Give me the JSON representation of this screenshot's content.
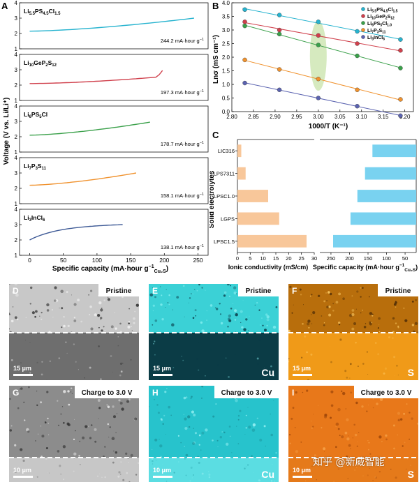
{
  "panelA": {
    "letter": "A",
    "ylabel": "Voltage (V vs. Li/Li⁺)",
    "xlabel": "Specific capacity (mA·hour g",
    "xlabel_sup": "−1",
    "xlabel_sub": "Cu₂S",
    "xlabel_close": ")",
    "xticks": [
      "0",
      "50",
      "100",
      "150",
      "200",
      "250"
    ],
    "yticks": [
      "1",
      "2",
      "3",
      "4"
    ],
    "curves": [
      {
        "base": "Li",
        "s1": "5.5",
        "m1": "PS",
        "s2": "4.5",
        "m2": "Cl",
        "s3": "1.5",
        "capacity_label": "244.2 mA·hour g",
        "capacity_sup": "−1",
        "color": "#26b3cf",
        "v_start": 2.15,
        "v_end": 3.0,
        "capacity": 244.2,
        "hook": false
      },
      {
        "base": "Li",
        "s1": "10",
        "m1": "GeP",
        "s2": "2",
        "m2": "S",
        "s3": "12",
        "capacity_label": "197.3 mA·hour g",
        "capacity_sup": "−1",
        "color": "#d0404c",
        "v_start": 2.1,
        "v_end": 2.55,
        "capacity": 197.3,
        "hook": true
      },
      {
        "base": "Li",
        "s1": "6",
        "m1": "PS",
        "s2": "5",
        "m2": "Cl",
        "s3": "",
        "capacity_label": "178.7 mA·hour g",
        "capacity_sup": "−1",
        "color": "#3aa04a",
        "v_start": 2.1,
        "v_end": 2.95,
        "capacity": 178.7,
        "hook": false
      },
      {
        "base": "Li",
        "s1": "7",
        "m1": "P",
        "s2": "3",
        "m2": "S",
        "s3": "11",
        "capacity_label": "158.1 mA·hour g",
        "capacity_sup": "−1",
        "color": "#f0922e",
        "v_start": 2.2,
        "v_end": 3.0,
        "capacity": 158.1,
        "hook": false
      },
      {
        "base": "Li",
        "s1": "3",
        "m1": "InCl",
        "s2": "6",
        "m2": "",
        "s3": "",
        "capacity_label": "138.1 mA·hour g",
        "capacity_sup": "−1",
        "color": "#3e5a96",
        "v_start": 2.0,
        "v_end": 3.0,
        "capacity": 138.1,
        "hook": false
      }
    ]
  },
  "panelB": {
    "letter": "B",
    "ylabel": "Lnσ (mS cm⁻¹)",
    "xlabel": "1000/T (K⁻¹)",
    "xticks": [
      "2.80",
      "2.85",
      "2.90",
      "2.95",
      "3.00",
      "3.05",
      "3.10",
      "3.15",
      "3.20"
    ],
    "yticks": [
      "0.0",
      "0.5",
      "1.0",
      "1.5",
      "2.0",
      "2.5",
      "3.0",
      "3.5",
      "4.0"
    ],
    "legend": [
      {
        "m": "Li",
        "s1": "5.5",
        "a": "PS",
        "s2": "4.5",
        "b": "Cl",
        "s3": "1.5",
        "color": "#26b3cf"
      },
      {
        "m": "Li",
        "s1": "10",
        "a": "GeP",
        "s2": "2",
        "b": "S",
        "s3": "12",
        "color": "#d0404c"
      },
      {
        "m": "Li",
        "s1": "6",
        "a": "PS",
        "s2": "5",
        "b": "Cl",
        "s3": "1.0",
        "color": "#3aa04a"
      },
      {
        "m": "Li",
        "s1": "7",
        "a": "P",
        "s2": "3",
        "b": "S",
        "s3": "11",
        "color": "#f0922e"
      },
      {
        "m": "Li",
        "s1": "3",
        "a": "InCl",
        "s2": "6",
        "b": "",
        "s3": "",
        "color": "#5b63b0"
      }
    ]
  },
  "panelC": {
    "letter": "C",
    "ylabel": "Solid electrolytes",
    "xlabel_left": "Ionic conductivity (mS/cm)",
    "xlabel_right": "Specific capacity (mA·hour g",
    "xlabel_right_sup": "−1",
    "xlabel_right_sub": "Cu₂S",
    "xlabel_right_close": ")",
    "xticks_left": [
      "0",
      "5",
      "10",
      "15",
      "20",
      "25",
      "30"
    ],
    "xticks_right": [
      "250",
      "200",
      "150",
      "100",
      "50"
    ],
    "categories": [
      "LIC316",
      "LPS7311",
      "LPSC1.0",
      "LGPS",
      "LPSC1.5"
    ]
  },
  "chart_data": [
    {
      "type": "line",
      "title": "",
      "xlabel": "Specific capacity (mA·hour g⁻¹ Cu₂S)",
      "ylabel": "Voltage (V vs. Li/Li⁺)",
      "xlim": [
        -15,
        265
      ],
      "ylim": [
        1,
        4
      ],
      "series": [
        {
          "name": "Li5.5PS4.5Cl1.5",
          "x": [
            0,
            50,
            100,
            150,
            200,
            244.2
          ],
          "y": [
            2.15,
            2.3,
            2.45,
            2.6,
            2.8,
            3.0
          ]
        },
        {
          "name": "Li10GeP2S12",
          "x": [
            0,
            50,
            100,
            150,
            190,
            197.3
          ],
          "y": [
            2.1,
            2.2,
            2.3,
            2.4,
            2.55,
            2.95
          ]
        },
        {
          "name": "Li6PS5Cl",
          "x": [
            0,
            50,
            100,
            150,
            178.7
          ],
          "y": [
            2.1,
            2.2,
            2.3,
            2.6,
            2.95
          ]
        },
        {
          "name": "Li7P3S11",
          "x": [
            0,
            50,
            100,
            150,
            158.1
          ],
          "y": [
            2.2,
            2.35,
            2.5,
            2.8,
            3.0
          ]
        },
        {
          "name": "Li3InCl6",
          "x": [
            0,
            25,
            50,
            100,
            138.1
          ],
          "y": [
            2.0,
            2.5,
            2.65,
            2.85,
            3.0
          ]
        }
      ]
    },
    {
      "type": "scatter",
      "title": "",
      "xlabel": "1000/T (K⁻¹)",
      "ylabel": "Lnσ (mS cm⁻¹)",
      "xlim": [
        2.8,
        3.22
      ],
      "ylim": [
        0.0,
        4.0
      ],
      "x": [
        2.83,
        2.91,
        3.0,
        3.09,
        3.19
      ],
      "series": [
        {
          "name": "Li5.5PS4.5Cl1.5",
          "values": [
            3.75,
            3.55,
            3.3,
            2.95,
            2.65
          ]
        },
        {
          "name": "Li10GeP2S12",
          "values": [
            3.3,
            3.0,
            2.8,
            2.5,
            2.25
          ]
        },
        {
          "name": "Li6PS5Cl1.0",
          "values": [
            3.15,
            2.85,
            2.45,
            2.05,
            1.6
          ]
        },
        {
          "name": "Li7P3S11",
          "values": [
            1.9,
            1.55,
            1.2,
            0.8,
            0.45
          ]
        },
        {
          "name": "Li3InCl6",
          "values": [
            1.05,
            0.8,
            0.5,
            0.2,
            -0.15
          ]
        }
      ],
      "annotation": "highlight ellipse at 1000/T = 3.00"
    },
    {
      "type": "bar",
      "orientation": "horizontal",
      "title": "",
      "xlabel": "Ionic conductivity (mS/cm)",
      "ylabel": "Solid electrolytes",
      "xlim": [
        0,
        30
      ],
      "categories": [
        "LIC316",
        "LPS7311",
        "LPSC1.0",
        "LGPS",
        "LPSC1.5"
      ],
      "series": [
        {
          "name": "Ionic conductivity",
          "values": [
            1.5,
            3.2,
            12,
            16.3,
            27
          ]
        }
      ]
    },
    {
      "type": "bar",
      "orientation": "horizontal",
      "title": "",
      "xlabel": "Specific capacity (mA·hour g⁻¹ Cu₂S)",
      "ylabel": "Solid electrolytes",
      "xlim": [
        0,
        300
      ],
      "categories": [
        "LIC316",
        "LPS7311",
        "LPSC1.0",
        "LGPS",
        "LPSC1.5"
      ],
      "series": [
        {
          "name": "Specific capacity",
          "values": [
            138.1,
            158.1,
            178.7,
            197.3,
            244.2
          ]
        }
      ]
    }
  ],
  "images": [
    {
      "letter": "D",
      "label": "Pristine",
      "scale": "15 μm",
      "element": "",
      "theme": "gray"
    },
    {
      "letter": "E",
      "label": "Pristine",
      "scale": "15 μm",
      "element": "Cu",
      "theme": "cyan"
    },
    {
      "letter": "F",
      "label": "Pristine",
      "scale": "15 μm",
      "element": "S",
      "theme": "orange"
    },
    {
      "letter": "G",
      "label": "Charge to 3.0 V",
      "scale": "10 μm",
      "element": "",
      "theme": "gray2"
    },
    {
      "letter": "H",
      "label": "Charge to 3.0 V",
      "scale": "10 μm",
      "element": "Cu",
      "theme": "cyan2"
    },
    {
      "letter": "I",
      "label": "Charge to 3.0 V",
      "scale": "10 μm",
      "element": "S",
      "theme": "orange2"
    }
  ],
  "watermark": "知乎 @新威智能",
  "colors": {
    "cyan": "#26b3cf",
    "red": "#d0404c",
    "green": "#3aa04a",
    "orange": "#f0922e",
    "navy": "#3e5a96",
    "purple": "#5b63b0",
    "bar_orange": "#f8c79a",
    "bar_blue": "#79d2f0",
    "ellipse": "#cfe6b4"
  }
}
